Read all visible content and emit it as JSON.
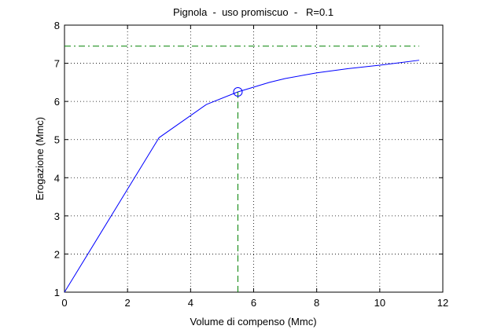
{
  "chart_data": {
    "type": "line",
    "title": "Pignola  -  uso promiscuo  -   R=0.1",
    "xlabel": "Volume di compenso (Mmc)",
    "ylabel": "Erogazione (Mmc)",
    "xlim": [
      0,
      12
    ],
    "ylim": [
      1,
      8
    ],
    "xticks": [
      0,
      2,
      4,
      6,
      8,
      10,
      12
    ],
    "yticks": [
      1,
      2,
      3,
      4,
      5,
      6,
      7,
      8
    ],
    "grid": true,
    "series": [
      {
        "color": "#0000ff",
        "style": "solid",
        "x": [
          0,
          3,
          4.5,
          5.5,
          6.5,
          7,
          8,
          9,
          10,
          11.25
        ],
        "values": [
          1,
          5.05,
          5.92,
          6.25,
          6.5,
          6.6,
          6.75,
          6.86,
          6.95,
          7.08
        ]
      },
      {
        "color": "#008000",
        "style": "dashdot",
        "x": [
          0,
          11.25
        ],
        "values": [
          7.45,
          7.45
        ]
      },
      {
        "color": "#008000",
        "style": "dashed",
        "x": [
          5.5,
          5.5
        ],
        "values": [
          1,
          6.25
        ]
      },
      {
        "color": "#0000ff",
        "style": "marker",
        "x": [
          5.5
        ],
        "values": [
          6.25
        ]
      }
    ]
  }
}
